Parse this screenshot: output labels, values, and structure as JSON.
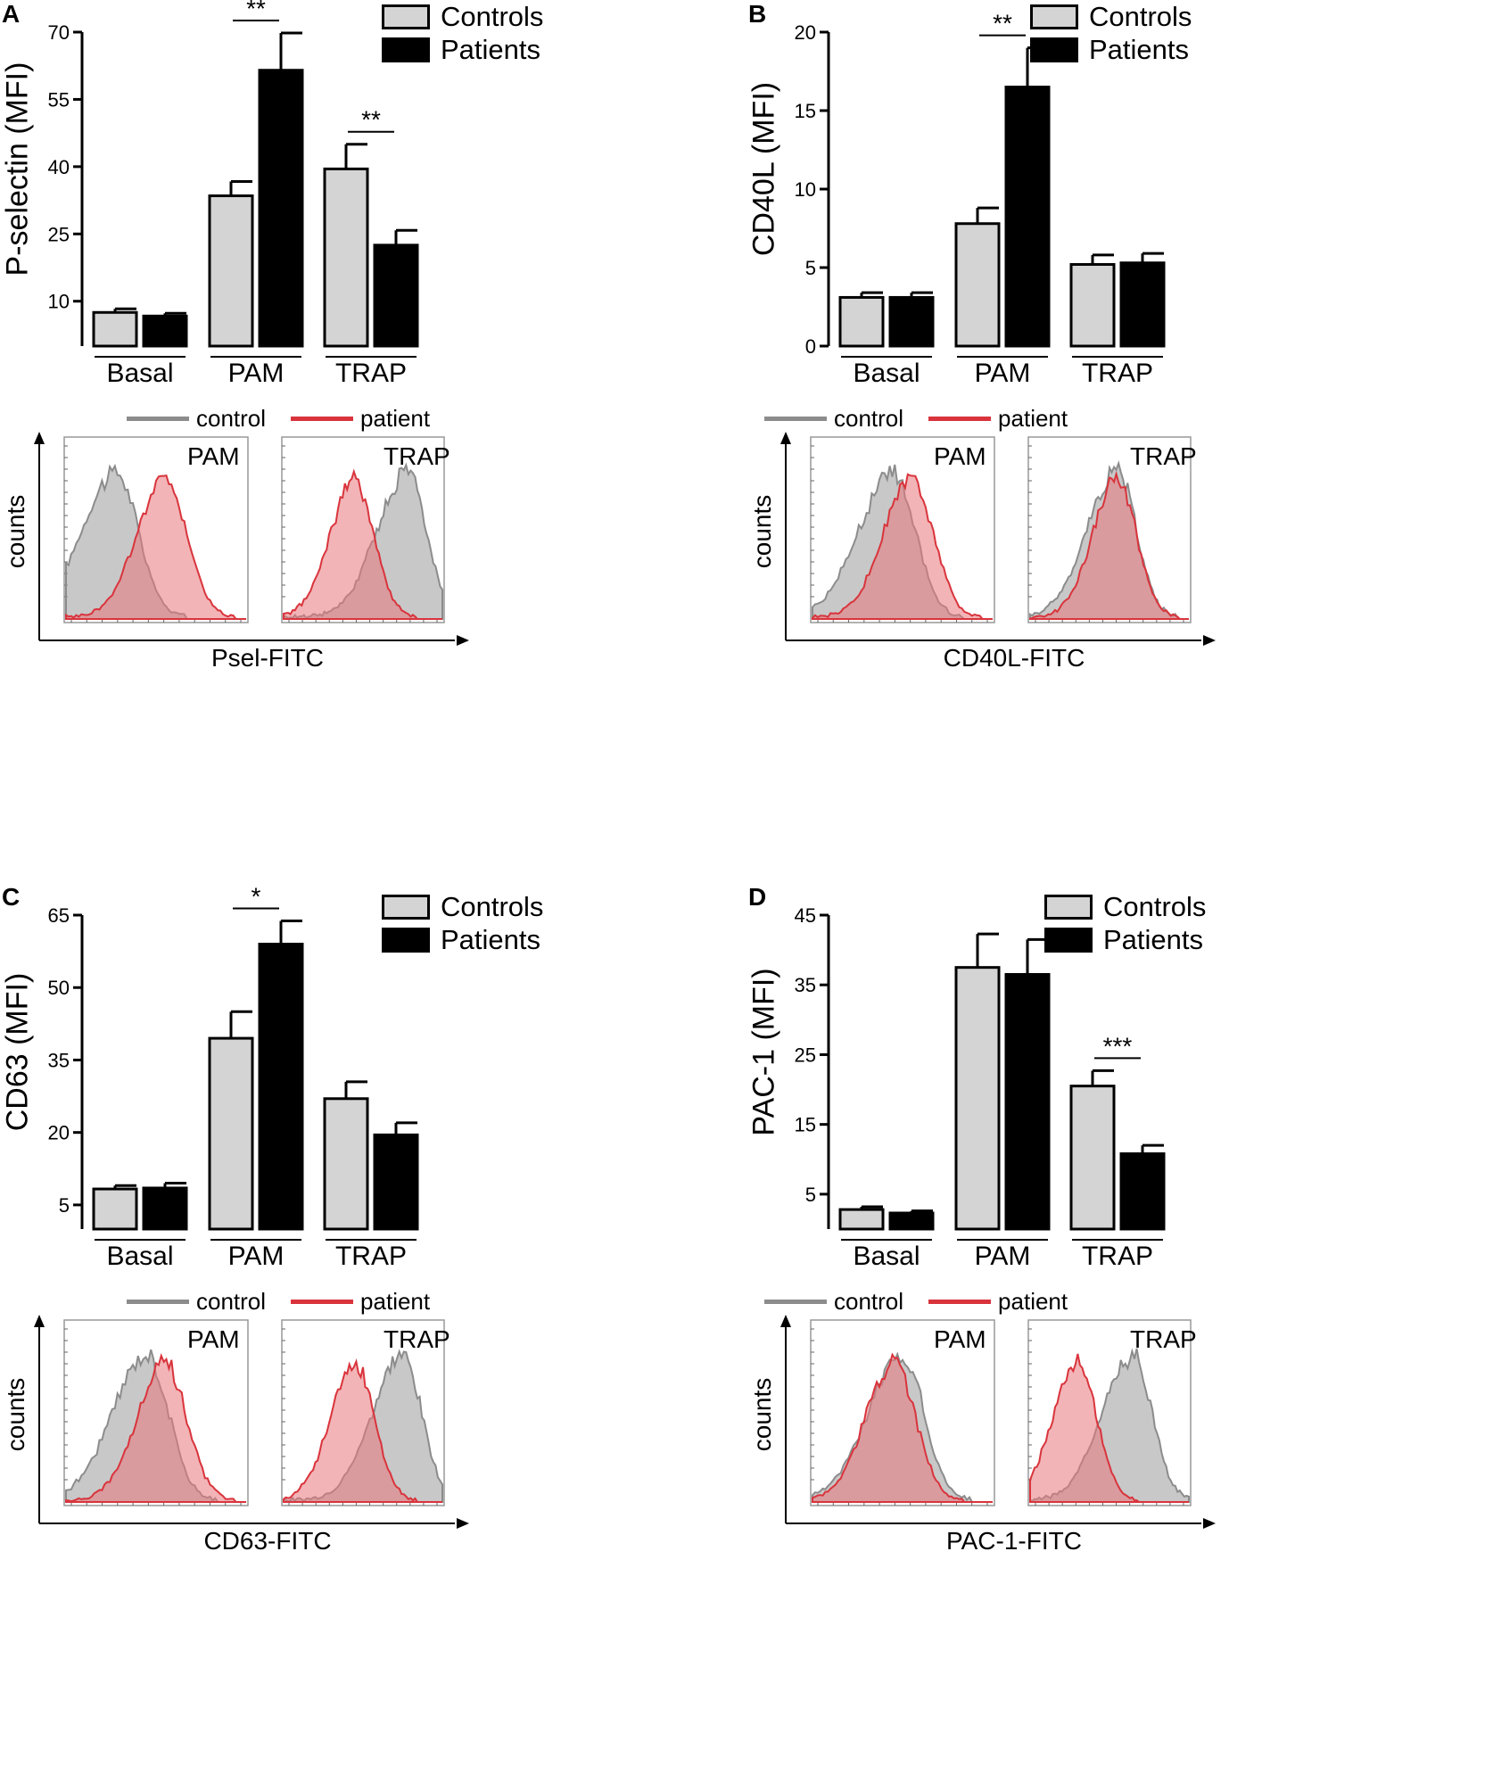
{
  "chart_data": [
    {
      "panel": "A",
      "type": "bar",
      "ylabel": "P-selectin (MFI)",
      "categories": [
        "Basal",
        "PAM",
        "TRAP"
      ],
      "ylim": [
        0,
        70
      ],
      "yticks": [
        "10",
        "25",
        "40",
        "55",
        "70"
      ],
      "ytick_values": [
        10,
        25,
        40,
        55,
        70
      ],
      "series": [
        {
          "name": "Controls",
          "values": [
            7.5,
            33.5,
            39.5
          ],
          "errors": [
            0.8,
            3.2,
            5.5
          ]
        },
        {
          "name": "Patients",
          "values": [
            6.7,
            61.5,
            22.5
          ],
          "errors": [
            0.6,
            8.3,
            3.3
          ]
        }
      ],
      "significance": [
        {
          "category": "PAM",
          "label": "**"
        },
        {
          "category": "TRAP",
          "label": "**"
        }
      ],
      "histogram": {
        "legend": [
          "control",
          "patient"
        ],
        "xlabel": "Psel-FITC",
        "ylabel": "counts",
        "subplots": [
          "PAM",
          "TRAP"
        ],
        "control_peak": [
          0.28,
          0.78
        ],
        "patient_peak": [
          0.55,
          0.45
        ]
      }
    },
    {
      "panel": "B",
      "type": "bar",
      "ylabel": "CD40L (MFI)",
      "categories": [
        "Basal",
        "PAM",
        "TRAP"
      ],
      "ylim": [
        0,
        20
      ],
      "yticks": [
        "0",
        "5",
        "10",
        "15",
        "20"
      ],
      "ytick_values": [
        0,
        5,
        10,
        15,
        20
      ],
      "series": [
        {
          "name": "Controls",
          "values": [
            3.1,
            7.8,
            5.2
          ],
          "errors": [
            0.3,
            1.0,
            0.6
          ]
        },
        {
          "name": "Patients",
          "values": [
            3.1,
            16.5,
            5.3
          ],
          "errors": [
            0.3,
            2.5,
            0.6
          ]
        }
      ],
      "significance": [
        {
          "category": "PAM",
          "label": "**"
        }
      ],
      "histogram": {
        "legend": [
          "control",
          "patient"
        ],
        "xlabel": "CD40L-FITC",
        "ylabel": "counts",
        "subplots": [
          "PAM",
          "TRAP"
        ],
        "control_peak": [
          0.45,
          0.55
        ],
        "patient_peak": [
          0.55,
          0.55
        ]
      }
    },
    {
      "panel": "C",
      "type": "bar",
      "ylabel": "CD63 (MFI)",
      "categories": [
        "Basal",
        "PAM",
        "TRAP"
      ],
      "ylim": [
        0,
        65
      ],
      "yticks": [
        "5",
        "20",
        "35",
        "50",
        "65"
      ],
      "ytick_values": [
        5,
        20,
        35,
        50,
        65
      ],
      "series": [
        {
          "name": "Controls",
          "values": [
            8.3,
            39.5,
            27.0
          ],
          "errors": [
            0.7,
            5.5,
            3.5
          ]
        },
        {
          "name": "Patients",
          "values": [
            8.5,
            59.0,
            19.5
          ],
          "errors": [
            1.0,
            4.8,
            2.5
          ]
        }
      ],
      "significance": [
        {
          "category": "PAM",
          "label": "*"
        }
      ],
      "histogram": {
        "legend": [
          "control",
          "patient"
        ],
        "xlabel": "CD63-FITC",
        "ylabel": "counts",
        "subplots": [
          "PAM",
          "TRAP"
        ],
        "control_peak": [
          0.45,
          0.75
        ],
        "patient_peak": [
          0.55,
          0.45
        ]
      }
    },
    {
      "panel": "D",
      "type": "bar",
      "ylabel": "PAC-1 (MFI)",
      "categories": [
        "Basal",
        "PAM",
        "TRAP"
      ],
      "ylim": [
        0,
        45
      ],
      "yticks": [
        "5",
        "15",
        "25",
        "35",
        "45"
      ],
      "ytick_values": [
        5,
        15,
        25,
        35,
        45
      ],
      "series": [
        {
          "name": "Controls",
          "values": [
            2.8,
            37.5,
            20.5
          ],
          "errors": [
            0.4,
            4.8,
            2.2
          ]
        },
        {
          "name": "Patients",
          "values": [
            2.3,
            36.5,
            10.8
          ],
          "errors": [
            0.3,
            5.0,
            1.2
          ]
        }
      ],
      "significance": [
        {
          "category": "TRAP",
          "label": "***"
        }
      ],
      "histogram": {
        "legend": [
          "control",
          "patient"
        ],
        "xlabel": "PAC-1-FITC",
        "ylabel": "counts",
        "subplots": [
          "PAM",
          "TRAP"
        ],
        "control_peak": [
          0.5,
          0.65
        ],
        "patient_peak": [
          0.45,
          0.3
        ]
      }
    }
  ],
  "legend": {
    "controls": "Controls",
    "patients": "Patients",
    "control": "control",
    "patient": "patient"
  },
  "colors": {
    "controls": "#d4d4d4",
    "patients": "#000000",
    "control_line": "#8c8c8c",
    "patient_line": "#d9343c",
    "control_fill": "#9a9a9a",
    "patient_fill": "#e8767c"
  }
}
